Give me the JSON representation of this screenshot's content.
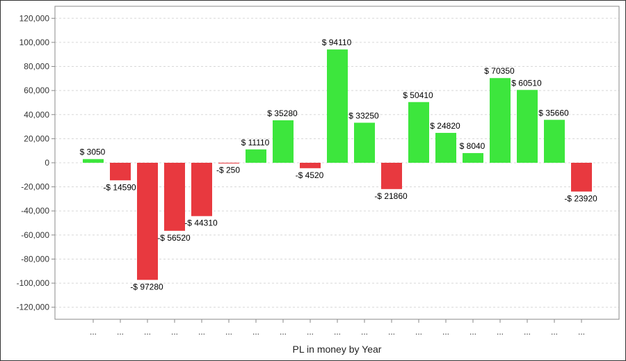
{
  "chart_data": {
    "type": "bar",
    "title": "",
    "xlabel": "PL in money by Year",
    "ylabel": "",
    "ylim": [
      -130000,
      130000
    ],
    "yticks": [
      120000,
      100000,
      80000,
      60000,
      40000,
      20000,
      0,
      -20000,
      -40000,
      -60000,
      -80000,
      -100000,
      -120000
    ],
    "ytick_labels": [
      "120,000",
      "100,000",
      "80,000",
      "60,000",
      "40,000",
      "20,000",
      "0",
      "-20,000",
      "-40,000",
      "-60,000",
      "-80,000",
      "-100,000",
      "-120,000"
    ],
    "grid": true,
    "categories": [
      "...",
      "...",
      "...",
      "...",
      "...",
      "...",
      "...",
      "...",
      "...",
      "...",
      "...",
      "...",
      "...",
      "...",
      "...",
      "...",
      "...",
      "...",
      "..."
    ],
    "values": [
      3050,
      -14590,
      -97280,
      -56520,
      -44310,
      -250,
      11110,
      35280,
      -4520,
      94110,
      33250,
      -21860,
      50410,
      24820,
      8040,
      70350,
      60510,
      35660,
      -23920
    ],
    "data_labels": [
      "$ 3050",
      "-$ 14590",
      "-$ 97280",
      "-$ 56520",
      "-$ 44310",
      "-$ 250",
      "$ 11110",
      "$ 35280",
      "-$ 4520",
      "$ 94110",
      "$ 33250",
      "-$ 21860",
      "$ 50410",
      "$ 24820",
      "$ 8040",
      "$ 70350",
      "$ 60510",
      "$ 35660",
      "-$ 23920"
    ],
    "colors": {
      "positive": "#3de63d",
      "negative": "#e8393f",
      "grid": "#d8d8d8",
      "axis": "#888888"
    }
  }
}
